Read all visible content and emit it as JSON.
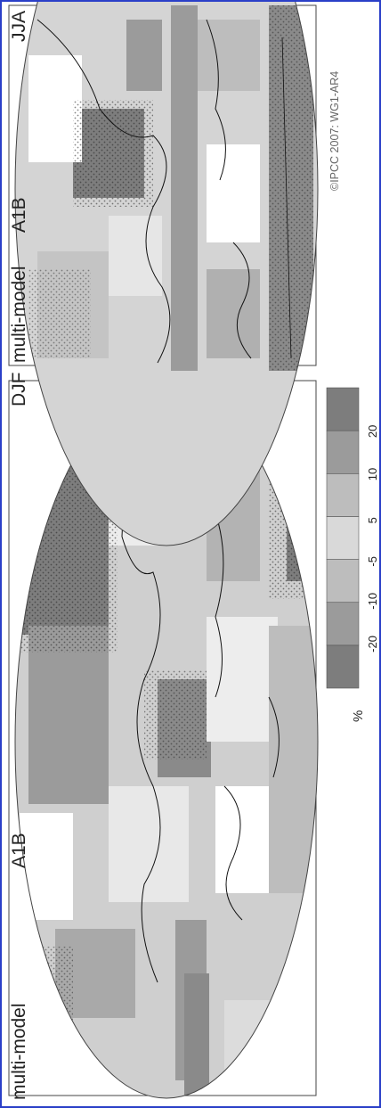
{
  "panels": [
    {
      "title_left": "multi-model",
      "title_mid": "A1B",
      "title_right": "DJF"
    },
    {
      "title_left": "multi-model",
      "title_mid": "A1B",
      "title_right": "JJA"
    }
  ],
  "colorbar": {
    "unit": "%",
    "ticks": [
      "-20",
      "-10",
      "-5",
      "5",
      "10",
      "20"
    ],
    "colors": [
      "#7d7d7d",
      "#9b9b9b",
      "#bdbdbd",
      "#d9d9d9",
      "#bdbdbd",
      "#9b9b9b",
      "#7d7d7d"
    ]
  },
  "credit": "©IPCC 2007: WG1-AR4",
  "colors": {
    "frame": "#2a3fc8",
    "land_outline": "#111111",
    "panel_border": "#444444"
  }
}
